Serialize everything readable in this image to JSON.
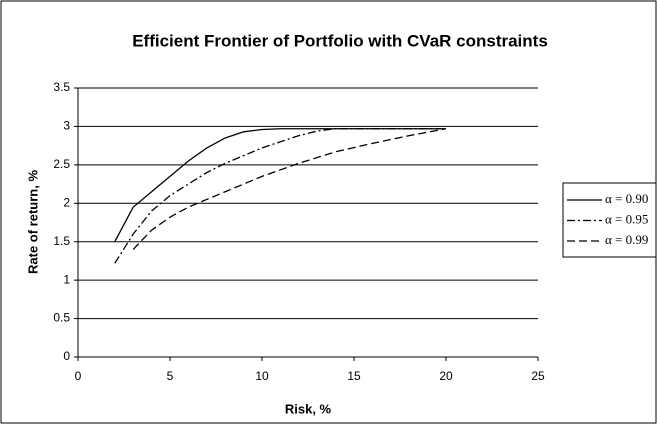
{
  "chart_data": {
    "type": "line",
    "title": "Efficient Frontier of Portfolio with CVaR constraints",
    "x_label": "Risk, %",
    "y_label": "Rate of return, %",
    "xlim": [
      0,
      25
    ],
    "xticks": [
      0,
      5,
      10,
      15,
      20,
      25
    ],
    "ylim": [
      0,
      3.5
    ],
    "yticks": [
      0,
      0.5,
      1,
      1.5,
      2,
      2.5,
      3,
      3.5
    ],
    "grid": true,
    "legend": "right",
    "series": [
      {
        "name": "α = 0.90",
        "color": "#000000",
        "dash": "solid",
        "x": [
          2,
          3,
          4,
          5,
          6,
          7,
          8,
          9,
          10,
          11,
          14,
          17,
          20
        ],
        "values": [
          1.5,
          1.95,
          2.15,
          2.35,
          2.55,
          2.72,
          2.85,
          2.93,
          2.96,
          2.97,
          2.97,
          2.97,
          2.97
        ]
      },
      {
        "name": "α = 0.95",
        "color": "#000000",
        "dash": "dashdot",
        "x": [
          2,
          3,
          4,
          5,
          6,
          7,
          8,
          9,
          10,
          11,
          12,
          13,
          14,
          17,
          20
        ],
        "values": [
          1.22,
          1.6,
          1.9,
          2.1,
          2.25,
          2.4,
          2.52,
          2.62,
          2.72,
          2.8,
          2.88,
          2.94,
          2.97,
          2.97,
          2.97
        ]
      },
      {
        "name": "α = 0.99",
        "color": "#000000",
        "dash": "dashed",
        "x": [
          3,
          4,
          5,
          6,
          8,
          10,
          12,
          14,
          16,
          18,
          20
        ],
        "values": [
          1.4,
          1.65,
          1.82,
          1.95,
          2.15,
          2.35,
          2.52,
          2.67,
          2.78,
          2.88,
          2.97
        ]
      }
    ]
  }
}
